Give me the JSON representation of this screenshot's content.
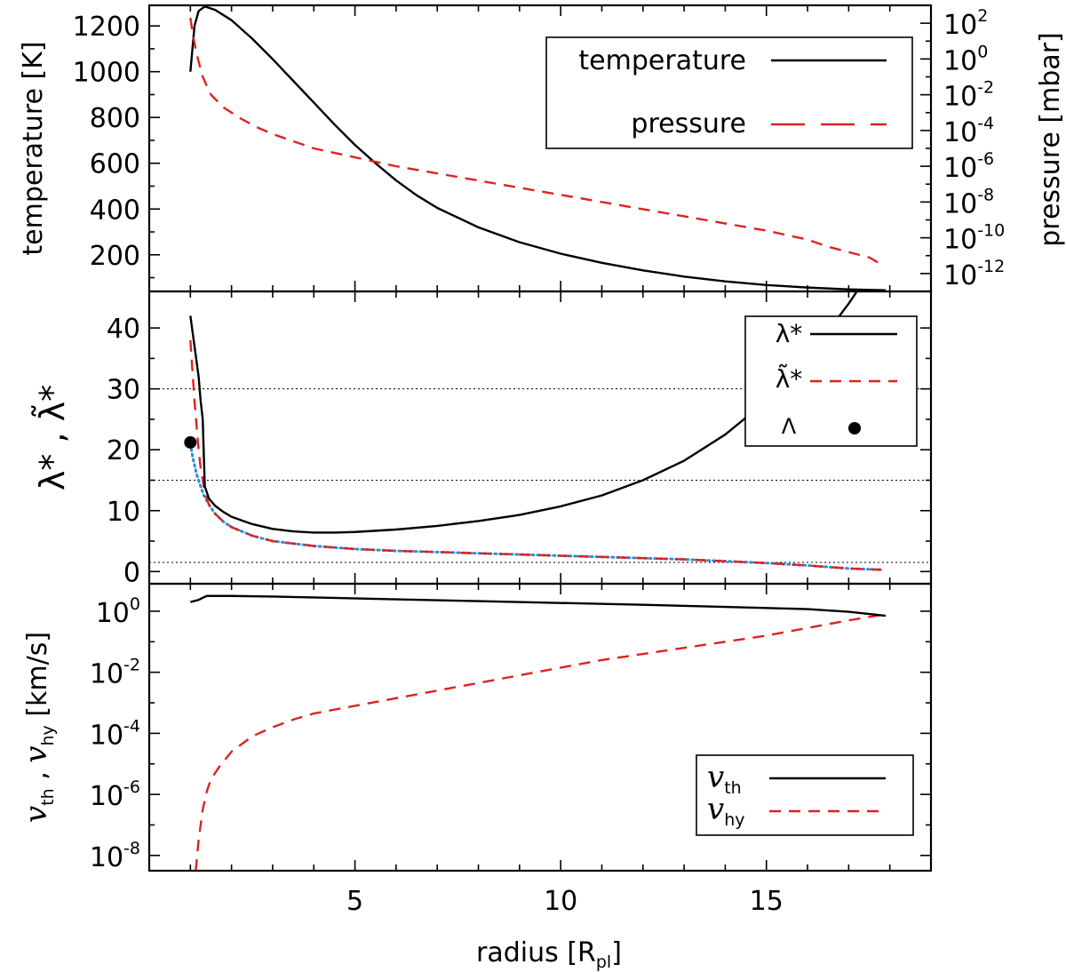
{
  "colors": {
    "black": "#000000",
    "red": "#dd2222",
    "blue": "#2a8fd8",
    "grid": "#000000"
  },
  "chart_data": [
    {
      "type": "line",
      "panel": "top",
      "xlabel": "",
      "ylabel": "temperature [K]",
      "ylabel_right": "pressure [mbar]",
      "xlim": [
        0,
        19
      ],
      "ylim": [
        40,
        1290
      ],
      "y2_scale": "log",
      "y2lim_exp": [
        -13,
        3
      ],
      "yticks": [
        "200",
        "400",
        "600",
        "800",
        "1000",
        "1200"
      ],
      "y2ticks": [
        {
          "base": "10",
          "exp": "2"
        },
        {
          "base": "10",
          "exp": "0"
        },
        {
          "base": "10",
          "exp": "-2"
        },
        {
          "base": "10",
          "exp": "-4"
        },
        {
          "base": "10",
          "exp": "-6"
        },
        {
          "base": "10",
          "exp": "-8"
        },
        {
          "base": "10",
          "exp": "-10"
        },
        {
          "base": "10",
          "exp": "-12"
        }
      ],
      "legend": {
        "placement": "top-right",
        "entries": [
          "temperature",
          "pressure"
        ]
      },
      "series": [
        {
          "name": "temperature",
          "axis": "left",
          "color": "#000000",
          "style": "solid",
          "x": [
            1.0,
            1.1,
            1.2,
            1.35,
            1.6,
            2.0,
            2.5,
            3.0,
            3.5,
            4.0,
            4.5,
            5.0,
            5.5,
            6.0,
            6.5,
            7.0,
            8.0,
            9.0,
            10.0,
            11.0,
            12.0,
            13.0,
            14.0,
            15.0,
            16.0,
            17.0,
            17.9
          ],
          "y": [
            1000,
            1200,
            1265,
            1285,
            1270,
            1225,
            1145,
            1055,
            960,
            865,
            770,
            680,
            600,
            525,
            460,
            405,
            320,
            255,
            205,
            165,
            132,
            105,
            84,
            68,
            57,
            49,
            45
          ]
        },
        {
          "name": "pressure",
          "axis": "right",
          "color": "#dd2222",
          "style": "dashed",
          "x": [
            1.0,
            1.05,
            1.15,
            1.3,
            1.5,
            1.8,
            2.2,
            2.6,
            3.0,
            3.5,
            4.0,
            5.0,
            6.0,
            7.0,
            8.0,
            9.0,
            10.0,
            11.0,
            12.0,
            13.0,
            14.0,
            15.0,
            16.0,
            16.5,
            17.0,
            17.5,
            17.8
          ],
          "y_exp": [
            2.3,
            1.5,
            0.3,
            -1.0,
            -2.0,
            -2.7,
            -3.3,
            -3.8,
            -4.2,
            -4.6,
            -5.0,
            -5.5,
            -6.0,
            -6.4,
            -6.8,
            -7.2,
            -7.6,
            -8.0,
            -8.4,
            -8.8,
            -9.2,
            -9.6,
            -10.1,
            -10.5,
            -10.8,
            -11.1,
            -11.5
          ]
        }
      ]
    },
    {
      "type": "line",
      "panel": "middle",
      "xlabel": "",
      "ylabel": "λ* , λ̃*",
      "xlim": [
        0,
        19
      ],
      "ylim": [
        -2,
        46
      ],
      "yticks": [
        "0",
        "10",
        "20",
        "30",
        "40"
      ],
      "reference_lines_y": [
        1.5,
        15,
        30
      ],
      "legend": {
        "placement": "top-right",
        "entries": [
          "λ*",
          "λ̃*",
          "Λ"
        ]
      },
      "series": [
        {
          "name": "λ*",
          "color": "#000000",
          "style": "solid",
          "x": [
            1.0,
            1.1,
            1.2,
            1.25,
            1.3,
            1.35,
            1.45,
            1.6,
            1.8,
            2.0,
            2.5,
            3.0,
            3.5,
            4.0,
            4.5,
            5.0,
            6.0,
            7.0,
            8.0,
            9.0,
            10.0,
            11.0,
            12.0,
            13.0,
            14.0,
            15.0,
            16.0,
            17.0,
            17.8
          ],
          "y": [
            42,
            37,
            32,
            28,
            25,
            14,
            12,
            10.8,
            9.8,
            9.0,
            7.8,
            7.0,
            6.6,
            6.4,
            6.4,
            6.5,
            6.9,
            7.5,
            8.3,
            9.3,
            10.7,
            12.5,
            15.0,
            18.2,
            22.5,
            28.0,
            35,
            44,
            52
          ]
        },
        {
          "name": "λ̃*",
          "color": "#dd2222",
          "style": "dashed",
          "x": [
            1.0,
            1.05,
            1.1,
            1.15,
            1.2,
            1.25,
            1.3,
            1.35,
            1.45,
            1.6,
            1.8,
            2.0,
            2.5,
            3.0,
            4.0,
            5.0,
            6.0,
            7.0,
            8.0,
            9.0,
            10.0,
            11.0,
            12.0,
            13.0,
            14.0,
            15.0,
            16.0,
            17.0,
            17.8
          ],
          "y": [
            38,
            33,
            28,
            24,
            20,
            17,
            15,
            13,
            11,
            9.5,
            8.2,
            7.3,
            5.9,
            5.0,
            4.2,
            3.7,
            3.4,
            3.2,
            3.0,
            2.8,
            2.6,
            2.4,
            2.2,
            2.0,
            1.7,
            1.4,
            1.0,
            0.5,
            0.3
          ]
        },
        {
          "name": "",
          "color": "#2a8fd8",
          "style": "dotted",
          "x": [
            1.0,
            1.05,
            1.1,
            1.15,
            1.2,
            1.25,
            1.3,
            1.35,
            1.45,
            1.6,
            1.8,
            2.0,
            2.5,
            3.0,
            4.0,
            5.0,
            6.0,
            7.0,
            8.0,
            9.0,
            10.0,
            11.0,
            12.0,
            13.0,
            14.0,
            15.0,
            16.0,
            17.0,
            17.8
          ],
          "y": [
            21,
            19,
            17.5,
            16,
            15,
            14,
            13,
            12.2,
            11,
            9.5,
            8.2,
            7.3,
            5.9,
            5.0,
            4.2,
            3.7,
            3.4,
            3.2,
            3.0,
            2.8,
            2.6,
            2.4,
            2.2,
            2.0,
            1.7,
            1.4,
            1.0,
            0.5,
            0.3
          ]
        }
      ],
      "points": [
        {
          "name": "Λ",
          "x": 1.0,
          "y": 21.2,
          "color": "#000000"
        }
      ]
    },
    {
      "type": "line",
      "panel": "bottom",
      "xlabel": "radius [R_pl]",
      "ylabel": "v_th , v_hy [km/s]",
      "xlim": [
        0,
        19
      ],
      "y_scale": "log",
      "ylim_exp": [
        -8.5,
        0.9
      ],
      "xticks": [
        "5",
        "10",
        "15"
      ],
      "yticks": [
        {
          "base": "10",
          "exp": "-8"
        },
        {
          "base": "10",
          "exp": "-6"
        },
        {
          "base": "10",
          "exp": "-4"
        },
        {
          "base": "10",
          "exp": "-2"
        },
        {
          "base": "10",
          "exp": "0"
        }
      ],
      "legend": {
        "placement": "bottom-right",
        "entries": [
          "v_th",
          "v_hy"
        ]
      },
      "series": [
        {
          "name": "v_th",
          "color": "#000000",
          "style": "solid",
          "x": [
            1.0,
            1.2,
            1.3,
            1.4,
            2.0,
            3.0,
            4.0,
            6.0,
            8.0,
            10.0,
            12.0,
            14.0,
            16.0,
            17.0,
            17.9
          ],
          "y_exp": [
            0.3,
            0.37,
            0.44,
            0.5,
            0.5,
            0.48,
            0.45,
            0.39,
            0.33,
            0.27,
            0.21,
            0.14,
            0.07,
            -0.02,
            -0.15
          ]
        },
        {
          "name": "v_hy",
          "color": "#dd2222",
          "style": "dashed",
          "x": [
            1.13,
            1.2,
            1.3,
            1.4,
            1.5,
            1.7,
            2.0,
            2.5,
            3.0,
            3.5,
            4.0,
            5.0,
            6.0,
            7.0,
            8.0,
            9.0,
            10.0,
            11.0,
            12.0,
            13.0,
            14.0,
            15.0,
            16.0,
            17.0,
            17.9
          ],
          "y_exp": [
            -8.5,
            -7.5,
            -6.5,
            -5.9,
            -5.5,
            -5.1,
            -4.6,
            -4.1,
            -3.8,
            -3.55,
            -3.35,
            -3.1,
            -2.85,
            -2.6,
            -2.35,
            -2.1,
            -1.85,
            -1.6,
            -1.4,
            -1.2,
            -1.0,
            -0.8,
            -0.55,
            -0.3,
            -0.1
          ]
        }
      ]
    }
  ]
}
